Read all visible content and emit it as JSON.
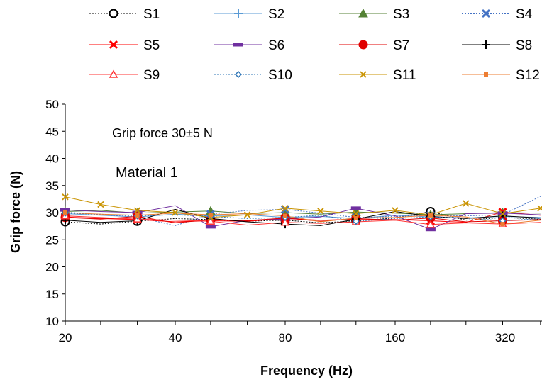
{
  "chart_data": {
    "type": "line",
    "xlabel": "Frequency (Hz)",
    "ylabel": "Grip force (N)",
    "x_scale": "log2",
    "x": [
      20,
      25,
      31.5,
      40,
      50,
      63,
      80,
      100,
      125,
      160,
      200,
      250,
      315,
      400
    ],
    "xticks": [
      20,
      40,
      80,
      160,
      320
    ],
    "xlim": [
      20,
      400
    ],
    "ylim": [
      10,
      50
    ],
    "yticks": [
      10,
      15,
      20,
      25,
      30,
      35,
      40,
      45,
      50
    ],
    "legend_position": "top",
    "annotations": [
      "Grip force 30±5 N",
      "Material 1"
    ],
    "series": [
      {
        "name": "S1",
        "color": "#000000",
        "dash": "2,2",
        "marker": "circle-open",
        "values": [
          28.3,
          27.9,
          28.4,
          28.9,
          28.7,
          28.4,
          28.6,
          28.1,
          28.5,
          29.0,
          30.2,
          28.6,
          29.1,
          28.8
        ]
      },
      {
        "name": "S2",
        "color": "#5b9bd5",
        "dash": "",
        "marker": "plus",
        "values": [
          29.8,
          29.5,
          29.2,
          29.7,
          29.4,
          29.6,
          29.1,
          29.3,
          28.9,
          29.5,
          29.2,
          29.0,
          29.3,
          29.1
        ]
      },
      {
        "name": "S3",
        "color": "#548235",
        "dash": "",
        "marker": "triangle",
        "values": [
          30.2,
          30.4,
          29.9,
          30.1,
          30.3,
          29.8,
          30.0,
          29.7,
          30.1,
          29.9,
          29.6,
          29.8,
          30.0,
          29.9
        ]
      },
      {
        "name": "S4",
        "color": "#4472c4",
        "dash": "2,2",
        "marker": "x-thick",
        "values": [
          30.1,
          29.6,
          29.2,
          27.6,
          29.7,
          30.4,
          30.6,
          29.9,
          29.1,
          29.3,
          29.5,
          29.4,
          29.6,
          33.0
        ]
      },
      {
        "name": "S5",
        "color": "#ff0000",
        "dash": "",
        "marker": "x-thick",
        "values": [
          29.2,
          28.9,
          28.7,
          28.3,
          28.5,
          28.4,
          28.9,
          28.6,
          28.8,
          28.7,
          28.5,
          28.2,
          30.1,
          29.5
        ]
      },
      {
        "name": "S6",
        "color": "#7030a0",
        "dash": "",
        "marker": "dash",
        "values": [
          30.5,
          30.2,
          30.0,
          31.3,
          27.4,
          28.6,
          28.8,
          29.2,
          30.8,
          29.4,
          26.9,
          29.8,
          29.9,
          29.6
        ]
      },
      {
        "name": "S7",
        "color": "#e00000",
        "dash": "",
        "marker": "circle-filled",
        "values": [
          29.1,
          28.8,
          29.3,
          28.1,
          28.7,
          28.5,
          29.0,
          28.4,
          28.9,
          28.6,
          29.0,
          28.3,
          28.5,
          28.7
        ]
      },
      {
        "name": "S8",
        "color": "#000000",
        "dash": "",
        "marker": "plus",
        "values": [
          28.6,
          28.2,
          28.5,
          30.6,
          28.9,
          28.3,
          27.9,
          27.6,
          28.8,
          30.2,
          29.3,
          28.9,
          29.4,
          29.0
        ]
      },
      {
        "name": "S9",
        "color": "#ff3333",
        "dash": "",
        "marker": "triangle-open",
        "values": [
          29.4,
          29.1,
          28.8,
          28.6,
          28.4,
          27.7,
          28.2,
          28.0,
          28.3,
          28.6,
          27.8,
          28.1,
          27.9,
          28.2
        ]
      },
      {
        "name": "S10",
        "color": "#2e75b6",
        "dash": "2,2",
        "marker": "diamond-open",
        "values": [
          29.9,
          29.7,
          29.4,
          29.6,
          29.3,
          28.9,
          29.1,
          29.5,
          28.4,
          28.9,
          29.2,
          29.0,
          28.5,
          28.9
        ]
      },
      {
        "name": "S11",
        "color": "#c99300",
        "dash": "",
        "marker": "x",
        "values": [
          32.9,
          31.5,
          30.4,
          30.0,
          29.1,
          29.6,
          30.8,
          30.3,
          29.8,
          30.4,
          29.6,
          31.7,
          29.8,
          30.8
        ]
      },
      {
        "name": "S12",
        "color": "#ed7d31",
        "dash": "",
        "marker": "square",
        "values": [
          30.0,
          29.7,
          29.5,
          29.9,
          29.6,
          29.8,
          29.4,
          28.3,
          29.0,
          29.1,
          29.5,
          29.2,
          27.9,
          28.6
        ]
      }
    ]
  }
}
